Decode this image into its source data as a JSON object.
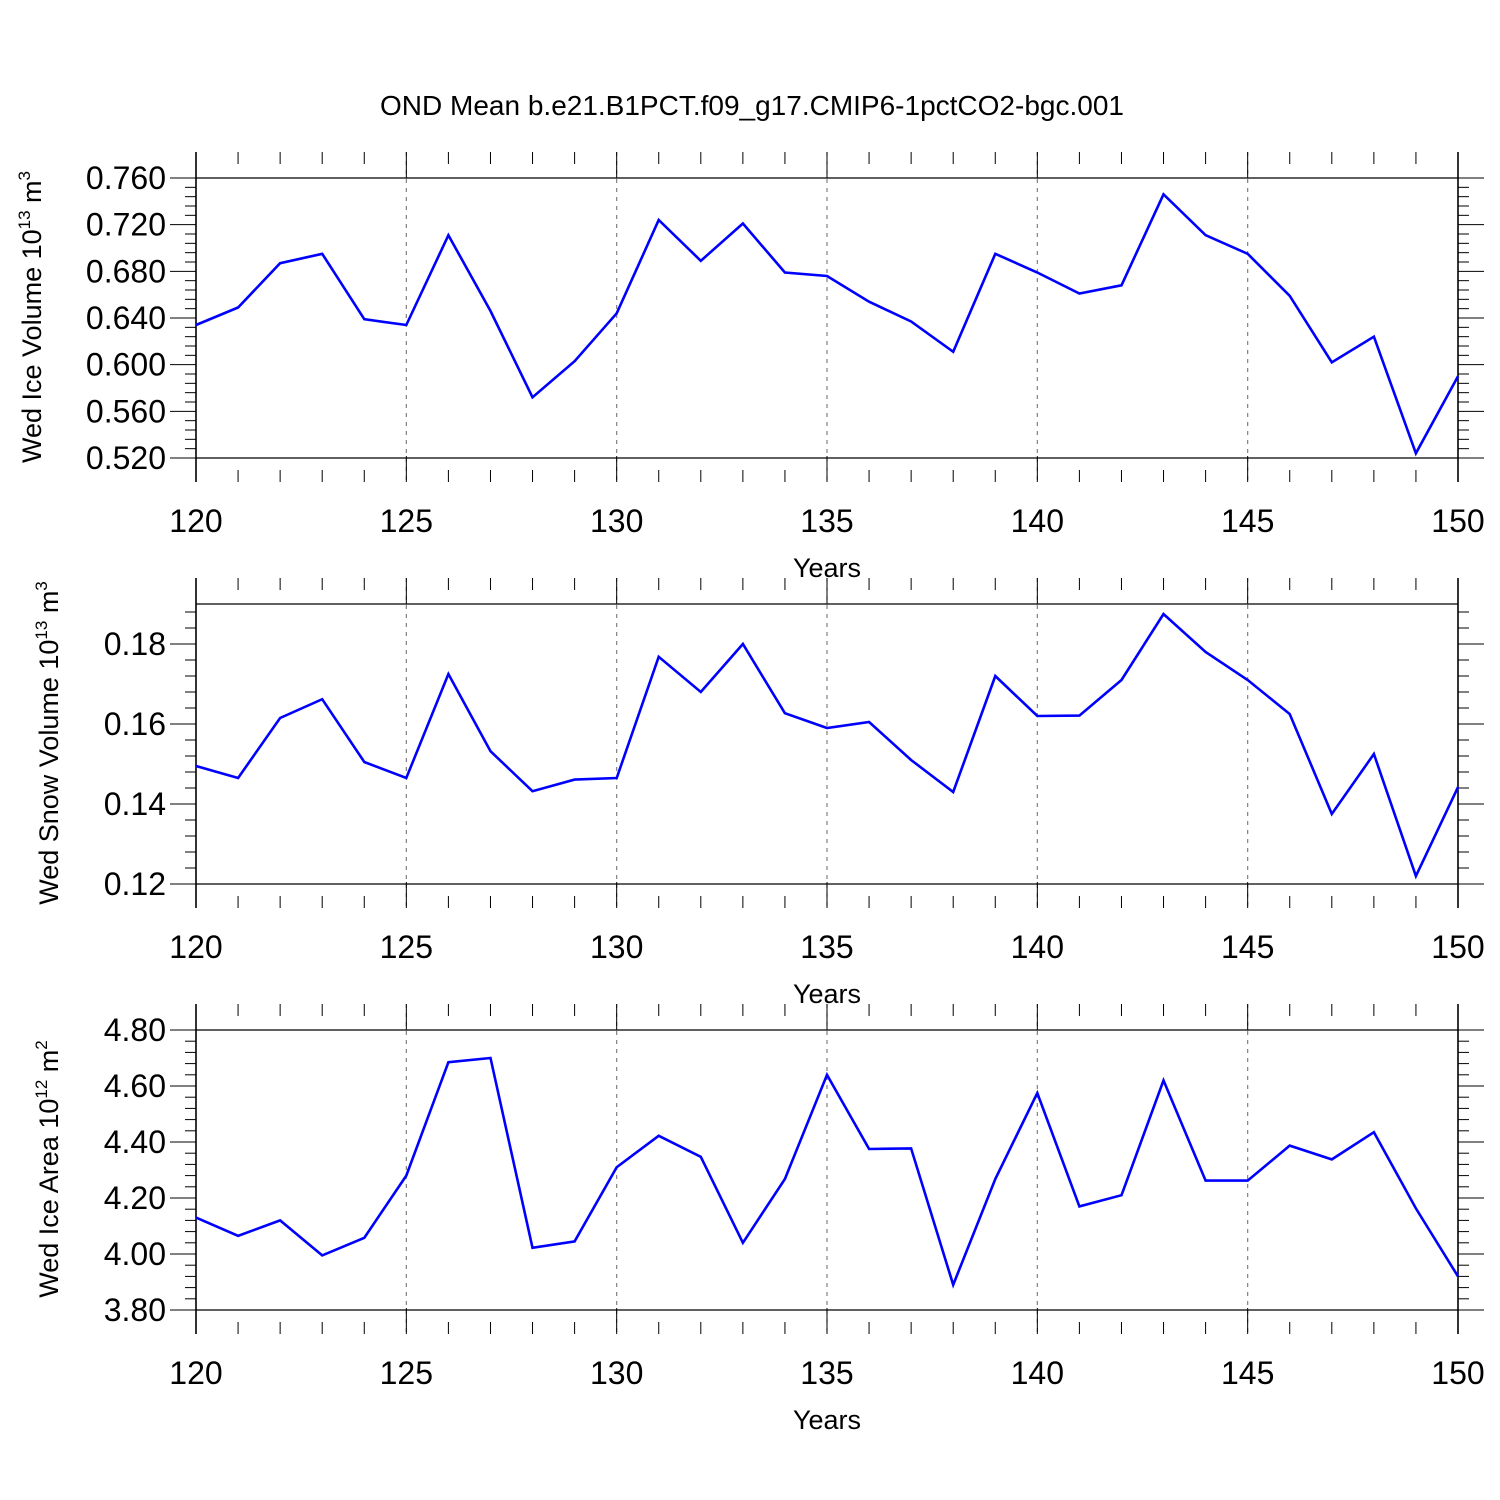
{
  "title": "OND Mean b.e21.B1PCT.f09_g17.CMIP6-1pctCO2-bgc.001",
  "colors": {
    "line": "#0000ff",
    "axis": "#000000",
    "grid": "#808080"
  },
  "chart_data": [
    {
      "type": "line",
      "ylabel": "Wed Ice Volume 10",
      "ylabel_exp": "13",
      "ylabel_unit": " m",
      "ylabel_unit_exp": "3",
      "xlabel": "Years",
      "xlim": [
        120,
        150
      ],
      "ylim": [
        0.52,
        0.76
      ],
      "yticks": [
        0.52,
        0.56,
        0.6,
        0.64,
        0.68,
        0.72,
        0.76
      ],
      "ytick_labels": [
        "0.520",
        "0.560",
        "0.600",
        "0.640",
        "0.680",
        "0.720",
        "0.760"
      ],
      "xticks": [
        120,
        125,
        130,
        135,
        140,
        145,
        150
      ],
      "xtick_labels": [
        "120",
        "125",
        "130",
        "135",
        "140",
        "145",
        "150"
      ],
      "grid": "vertical dashed at major x ticks",
      "x": [
        120,
        121,
        122,
        123,
        124,
        125,
        126,
        127,
        128,
        129,
        130,
        131,
        132,
        133,
        134,
        135,
        136,
        137,
        138,
        139,
        140,
        141,
        142,
        143,
        144,
        145,
        146,
        147,
        148,
        149,
        150
      ],
      "values": [
        0.634,
        0.649,
        0.687,
        0.695,
        0.639,
        0.634,
        0.711,
        0.646,
        0.572,
        0.603,
        0.644,
        0.724,
        0.689,
        0.721,
        0.679,
        0.676,
        0.654,
        0.637,
        0.611,
        0.695,
        0.679,
        0.661,
        0.668,
        0.746,
        0.711,
        0.695,
        0.659,
        0.602,
        0.624,
        0.524,
        0.59
      ]
    },
    {
      "type": "line",
      "ylabel": "Wed Snow Volume 10",
      "ylabel_exp": "13",
      "ylabel_unit": " m",
      "ylabel_unit_exp": "3",
      "xlabel": "Years",
      "xlim": [
        120,
        150
      ],
      "ylim": [
        0.12,
        0.19
      ],
      "yticks": [
        0.12,
        0.14,
        0.16,
        0.18
      ],
      "ytick_labels": [
        "0.12",
        "0.14",
        "0.16",
        "0.18"
      ],
      "xticks": [
        120,
        125,
        130,
        135,
        140,
        145,
        150
      ],
      "xtick_labels": [
        "120",
        "125",
        "130",
        "135",
        "140",
        "145",
        "150"
      ],
      "grid": "vertical dashed at major x ticks",
      "x": [
        120,
        121,
        122,
        123,
        124,
        125,
        126,
        127,
        128,
        129,
        130,
        131,
        132,
        133,
        134,
        135,
        136,
        137,
        138,
        139,
        140,
        141,
        142,
        143,
        144,
        145,
        146,
        147,
        148,
        149,
        150
      ],
      "values": [
        0.1495,
        0.1465,
        0.1615,
        0.1662,
        0.1505,
        0.1465,
        0.1725,
        0.1532,
        0.1432,
        0.1461,
        0.1465,
        0.1768,
        0.168,
        0.18,
        0.1627,
        0.159,
        0.1605,
        0.151,
        0.143,
        0.172,
        0.162,
        0.1621,
        0.171,
        0.1875,
        0.178,
        0.171,
        0.1625,
        0.1375,
        0.1525,
        0.122,
        0.1442
      ]
    },
    {
      "type": "line",
      "ylabel": "Wed Ice Area 10",
      "ylabel_exp": "12",
      "ylabel_unit": " m",
      "ylabel_unit_exp": "2",
      "xlabel": "Years",
      "xlim": [
        120,
        150
      ],
      "ylim": [
        3.8,
        4.8
      ],
      "yticks": [
        3.8,
        4.0,
        4.2,
        4.4,
        4.6,
        4.8
      ],
      "ytick_labels": [
        "3.80",
        "4.00",
        "4.20",
        "4.40",
        "4.60",
        "4.80"
      ],
      "xticks": [
        120,
        125,
        130,
        135,
        140,
        145,
        150
      ],
      "xtick_labels": [
        "120",
        "125",
        "130",
        "135",
        "140",
        "145",
        "150"
      ],
      "grid": "vertical dashed at major x ticks",
      "x": [
        120,
        121,
        122,
        123,
        124,
        125,
        126,
        127,
        128,
        129,
        130,
        131,
        132,
        133,
        134,
        135,
        136,
        137,
        138,
        139,
        140,
        141,
        142,
        143,
        144,
        145,
        146,
        147,
        148,
        149,
        150
      ],
      "values": [
        4.13,
        4.065,
        4.12,
        3.995,
        4.058,
        4.28,
        4.685,
        4.7,
        4.022,
        4.045,
        4.31,
        4.422,
        4.347,
        4.04,
        4.268,
        4.64,
        4.375,
        4.377,
        3.89,
        4.268,
        4.575,
        4.17,
        4.21,
        4.62,
        4.262,
        4.262,
        4.387,
        4.338,
        4.435,
        4.163,
        3.92
      ]
    }
  ]
}
